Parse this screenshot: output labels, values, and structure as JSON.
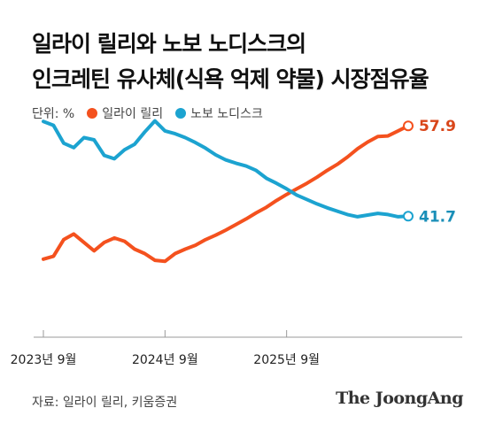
{
  "title_lines": [
    "일라이 릴리와 노보 노디스크의",
    "인크레틴 유사체(식욕 억제 약물) 시장점유율"
  ],
  "legend": {
    "unit": "단위: %",
    "items": [
      {
        "label": "일라이 릴리",
        "color": "#f4511e"
      },
      {
        "label": "노보 노디스크",
        "color": "#1ca3d0"
      }
    ]
  },
  "source": "자료: 일라이 릴리, 키움증권",
  "brand": "The JoongAng",
  "chart_data": {
    "type": "line",
    "x": [
      0,
      1,
      2,
      3,
      4,
      5,
      6,
      7,
      8,
      9,
      10,
      11,
      12,
      13,
      14,
      15,
      16,
      17,
      18,
      19,
      20,
      21,
      22,
      23,
      24,
      25,
      26,
      27,
      28,
      29,
      30,
      31,
      32,
      33,
      34,
      35,
      36
    ],
    "x_ticks": [
      {
        "index": 0,
        "label": "2023년 9월"
      },
      {
        "index": 12,
        "label": "2024년 9월"
      },
      {
        "index": 24,
        "label": "2025년 9월"
      }
    ],
    "series": [
      {
        "name": "일라이 릴리",
        "color": "#f4511e",
        "values": [
          34.0,
          34.5,
          37.5,
          38.5,
          37.0,
          35.5,
          37.0,
          37.8,
          37.2,
          35.8,
          35.0,
          33.8,
          33.6,
          35.0,
          35.8,
          36.5,
          37.5,
          38.3,
          39.2,
          40.2,
          41.2,
          42.3,
          43.3,
          44.5,
          45.6,
          46.6,
          47.6,
          48.7,
          49.9,
          51.0,
          52.3,
          53.8,
          55.0,
          56.0,
          56.1,
          57.0,
          57.9
        ],
        "end_label": "57.9"
      },
      {
        "name": "노보 노디스크",
        "color": "#1ca3d0",
        "values": [
          58.7,
          58.0,
          54.8,
          54.0,
          55.8,
          55.4,
          52.6,
          52.0,
          53.6,
          54.6,
          56.8,
          58.8,
          57.0,
          56.5,
          55.8,
          54.9,
          53.9,
          52.7,
          51.8,
          51.2,
          50.7,
          49.9,
          48.5,
          47.6,
          46.6,
          45.5,
          44.7,
          43.9,
          43.2,
          42.6,
          42.0,
          41.6,
          41.9,
          42.2,
          42.0,
          41.6,
          41.7
        ],
        "end_label": "41.7"
      }
    ],
    "ylim": [
      20,
      60
    ]
  }
}
